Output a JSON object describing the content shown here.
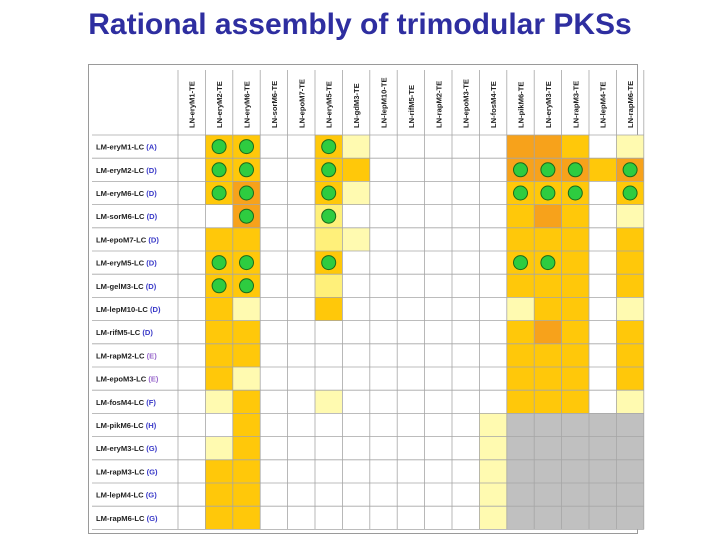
{
  "title": "Rational assembly of trimodular PKSs",
  "columns": [
    "LN-eryM1-TE",
    "LN-eryM2-TE",
    "LN-eryM6-TE",
    "LN-sorM6-TE",
    "LN-epoM7-TE",
    "LN-eryM5-TE",
    "LN-gdM3-TE",
    "LN-lepM10-TE",
    "LN-rifM5-TE",
    "LN-rapM2-TE",
    "LN-epoM3-TE",
    "LN-fosM4-TE",
    "LN-pikM6-TE",
    "LN-eryM3-TE",
    "LN-rapM3-TE",
    "LN-lepM4-TE",
    "LN-rapM6-TE"
  ],
  "rows": [
    {
      "name": "LM-eryM1-LC",
      "tag": "(A)",
      "tag_color": "#3a3ac8"
    },
    {
      "name": "LM-eryM2-LC",
      "tag": "(D)",
      "tag_color": "#3a3ac8"
    },
    {
      "name": "LM-eryM6-LC",
      "tag": "(D)",
      "tag_color": "#3a3ac8"
    },
    {
      "name": "LM-sorM6-LC",
      "tag": "(D)",
      "tag_color": "#3a3ac8"
    },
    {
      "name": "LM-epoM7-LC",
      "tag": "(D)",
      "tag_color": "#3a3ac8"
    },
    {
      "name": "LM-eryM5-LC",
      "tag": "(D)",
      "tag_color": "#3a3ac8"
    },
    {
      "name": "LM-gelM3-LC",
      "tag": "(D)",
      "tag_color": "#3a3ac8"
    },
    {
      "name": "LM-lepM10-LC",
      "tag": "(D)",
      "tag_color": "#3a3ac8"
    },
    {
      "name": "LM-rifM5-LC",
      "tag": "(D)",
      "tag_color": "#3a3ac8"
    },
    {
      "name": "LM-rapM2-LC",
      "tag": "(E)",
      "tag_color": "#9a6acc"
    },
    {
      "name": "LM-epoM3-LC",
      "tag": "(E)",
      "tag_color": "#9a6acc"
    },
    {
      "name": "LM-fosM4-LC",
      "tag": "(F)",
      "tag_color": "#3a3ac8"
    },
    {
      "name": "LM-pikM6-LC",
      "tag": "(H)",
      "tag_color": "#3a3ac8"
    },
    {
      "name": "LM-eryM3-LC",
      "tag": "(G)",
      "tag_color": "#3a3ac8"
    },
    {
      "name": "LM-rapM3-LC",
      "tag": "(G)",
      "tag_color": "#3a3ac8"
    },
    {
      "name": "LM-lepM4-LC",
      "tag": "(G)",
      "tag_color": "#3a3ac8"
    },
    {
      "name": "LM-rapM6-LC",
      "tag": "(G)",
      "tag_color": "#3a3ac8"
    }
  ],
  "legend_colors": {
    "0": "#ffffff",
    "1": "#fffab0",
    "2": "#fff07a",
    "3": "#ffc80a",
    "4": "#f7a21b",
    "5": "#c0c0c0",
    "dot": "#2ecc40"
  },
  "grid": [
    [
      0,
      3,
      3,
      0,
      0,
      3,
      1,
      0,
      0,
      0,
      0,
      0,
      4,
      4,
      3,
      0,
      1
    ],
    [
      0,
      3,
      3,
      0,
      0,
      3,
      3,
      0,
      0,
      0,
      0,
      0,
      4,
      4,
      4,
      3,
      4
    ],
    [
      0,
      3,
      4,
      0,
      0,
      3,
      1,
      0,
      0,
      0,
      0,
      0,
      3,
      3,
      3,
      0,
      3
    ],
    [
      0,
      0,
      4,
      0,
      0,
      2,
      0,
      0,
      0,
      0,
      0,
      0,
      3,
      4,
      3,
      0,
      1
    ],
    [
      0,
      3,
      3,
      0,
      0,
      2,
      1,
      0,
      0,
      0,
      0,
      0,
      3,
      3,
      3,
      0,
      3
    ],
    [
      0,
      3,
      3,
      0,
      0,
      3,
      0,
      0,
      0,
      0,
      0,
      0,
      3,
      3,
      3,
      0,
      3
    ],
    [
      0,
      3,
      3,
      0,
      0,
      2,
      0,
      0,
      0,
      0,
      0,
      0,
      3,
      3,
      3,
      0,
      3
    ],
    [
      0,
      3,
      1,
      0,
      0,
      3,
      0,
      0,
      0,
      0,
      0,
      0,
      1,
      3,
      3,
      0,
      1
    ],
    [
      0,
      3,
      3,
      0,
      0,
      0,
      0,
      0,
      0,
      0,
      0,
      0,
      3,
      4,
      3,
      0,
      3
    ],
    [
      0,
      3,
      3,
      0,
      0,
      0,
      0,
      0,
      0,
      0,
      0,
      0,
      3,
      3,
      3,
      0,
      3
    ],
    [
      0,
      3,
      1,
      0,
      0,
      0,
      0,
      0,
      0,
      0,
      0,
      0,
      3,
      3,
      3,
      0,
      3
    ],
    [
      0,
      1,
      3,
      0,
      0,
      1,
      0,
      0,
      0,
      0,
      0,
      0,
      3,
      3,
      3,
      0,
      1
    ],
    [
      0,
      0,
      3,
      0,
      0,
      0,
      0,
      0,
      0,
      0,
      0,
      1,
      5,
      5,
      5,
      5,
      5
    ],
    [
      0,
      1,
      3,
      0,
      0,
      0,
      0,
      0,
      0,
      0,
      0,
      1,
      5,
      5,
      5,
      5,
      5
    ],
    [
      0,
      3,
      3,
      0,
      0,
      0,
      0,
      0,
      0,
      0,
      0,
      1,
      5,
      5,
      5,
      5,
      5
    ],
    [
      0,
      3,
      3,
      0,
      0,
      0,
      0,
      0,
      0,
      0,
      0,
      1,
      5,
      5,
      5,
      5,
      5
    ],
    [
      0,
      3,
      3,
      0,
      0,
      0,
      0,
      0,
      0,
      0,
      0,
      1,
      5,
      5,
      5,
      5,
      5
    ]
  ],
  "dots": [
    [
      0,
      1
    ],
    [
      0,
      2
    ],
    [
      0,
      5
    ],
    [
      1,
      1
    ],
    [
      1,
      2
    ],
    [
      1,
      5
    ],
    [
      1,
      12
    ],
    [
      1,
      13
    ],
    [
      1,
      14
    ],
    [
      1,
      16
    ],
    [
      2,
      1
    ],
    [
      2,
      2
    ],
    [
      2,
      5
    ],
    [
      2,
      12
    ],
    [
      2,
      13
    ],
    [
      2,
      14
    ],
    [
      2,
      16
    ],
    [
      3,
      2
    ],
    [
      3,
      5
    ],
    [
      5,
      1
    ],
    [
      5,
      2
    ],
    [
      5,
      5
    ],
    [
      5,
      12
    ],
    [
      5,
      13
    ],
    [
      6,
      1
    ],
    [
      6,
      2
    ]
  ]
}
